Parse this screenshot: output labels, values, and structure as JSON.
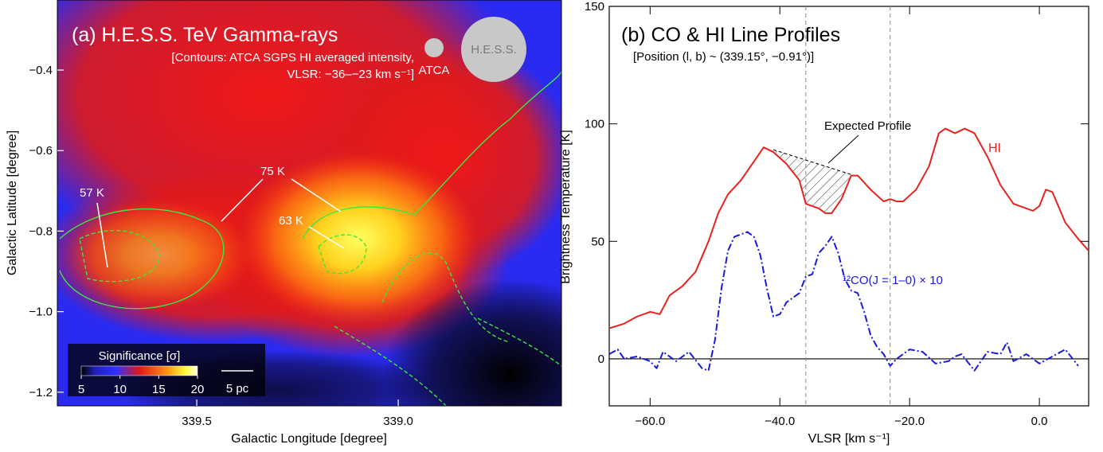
{
  "chart_data": [
    {
      "type": "map",
      "title": "(a) H.E.S.S. TeV Gamma-rays",
      "subtitle": [
        "[Contours: ATCA SGPS HI averaged intensity,",
        "VLSR: −36–−23 km s⁻¹]"
      ],
      "beams": [
        "ATCA",
        "H.E.S.S."
      ],
      "annotations": [
        "57 K",
        "75 K",
        "63 K"
      ],
      "xlabel": "Galactic Longitude [degree]",
      "ylabel": "Galactic Latitude [degree]",
      "xlim": [
        339.846,
        338.595
      ],
      "ylim": [
        -1.234,
        -0.226
      ],
      "xticks": [
        339.5,
        {
          "value": 339,
          "label": "339.0"
        }
      ],
      "yticks": [
        {
          "value": -1.2,
          "label": "−1.2"
        },
        {
          "value": -1.0,
          "label": "−1.0"
        },
        {
          "value": -0.8,
          "label": "−0.8"
        },
        {
          "value": -0.6,
          "label": "−0.6"
        },
        {
          "value": -0.4,
          "label": "−0.4"
        }
      ],
      "colorbar": {
        "label": "Significance [σ]",
        "lim": [
          5,
          20
        ],
        "ticks": [
          5,
          10,
          15,
          20
        ]
      },
      "scale_bar": "5 pc"
    },
    {
      "type": "line",
      "title": "(b) CO & HI Line Profiles",
      "subtitle": "[Position (l, b) ~ (339.15°, −0.91°)]",
      "xlabel": "VLSR [km s⁻¹]",
      "ylabel": "Brightness Temperature [K]",
      "xlim": [
        -66.3,
        7.6
      ],
      "ylim": [
        -20,
        150
      ],
      "xticks": [
        {
          "value": -60,
          "label": "−60.0"
        },
        {
          "value": -40,
          "label": "−40.0"
        },
        {
          "value": -20,
          "label": "−20.0"
        },
        {
          "value": 0,
          "label": "0.0"
        }
      ],
      "yticks": [
        0,
        50,
        100,
        150
      ],
      "vlines": [
        -36,
        -23
      ],
      "series": [
        {
          "name": "HI",
          "color": "#e8231f",
          "x": [
            -66.3,
            -64,
            -62,
            -60,
            -58.5,
            -57,
            -55,
            -53,
            -51,
            -49.5,
            -48,
            -46,
            -44,
            -42.5,
            -41,
            -39,
            -37,
            -36,
            -34,
            -33,
            -32,
            -30.5,
            -29,
            -28,
            -26,
            -24,
            -23,
            -22,
            -21,
            -19,
            -17,
            -15.5,
            -14.5,
            -13,
            -11.5,
            -10,
            -8,
            -6,
            -4,
            -2,
            -1,
            0,
            1,
            2,
            4,
            6,
            7.6
          ],
          "values": [
            13,
            15,
            18,
            20,
            19,
            27,
            31,
            37,
            50,
            62,
            70,
            76,
            84,
            90,
            88,
            83,
            76,
            66,
            64,
            62,
            62,
            68,
            78,
            78,
            72,
            67,
            68,
            67,
            67,
            72,
            82,
            96,
            98,
            96,
            98,
            96,
            86,
            74,
            66,
            64,
            63,
            65,
            72,
            71,
            58,
            51,
            46
          ]
        },
        {
          "name": "¹²CO(J = 1–0) × 10",
          "color": "#1a1adb",
          "x": [
            -66.3,
            -65,
            -64,
            -62,
            -60,
            -59,
            -58,
            -56,
            -54,
            -52,
            -51,
            -50,
            -49,
            -48,
            -47,
            -46,
            -45,
            -44,
            -43,
            -42,
            -41,
            -40,
            -39,
            -37,
            -36,
            -35,
            -34,
            -33,
            -32,
            -31,
            -30,
            -29,
            -28,
            -27,
            -26,
            -25,
            -24,
            -23,
            -22,
            -20,
            -18,
            -16,
            -14,
            -13,
            -12,
            -10,
            -8,
            -6,
            -5,
            -4,
            -2,
            0,
            2,
            4,
            6
          ],
          "values": [
            2,
            4,
            0,
            1,
            -1,
            -4,
            3,
            -1,
            3,
            -4,
            -5,
            8,
            30,
            46,
            52,
            53,
            54,
            52,
            44,
            30,
            18,
            19,
            24,
            28,
            35,
            36,
            45,
            48,
            52,
            45,
            34,
            29,
            28,
            20,
            10,
            5,
            2,
            -3,
            0,
            4,
            3,
            -2,
            -1,
            1,
            2,
            -5,
            3,
            2,
            7,
            -1,
            2,
            -2,
            1,
            4,
            -3
          ]
        }
      ],
      "expected_profile": {
        "label": "Expected Profile",
        "x": [
          -41,
          -28.5
        ],
        "values": [
          89,
          78
        ]
      }
    }
  ]
}
